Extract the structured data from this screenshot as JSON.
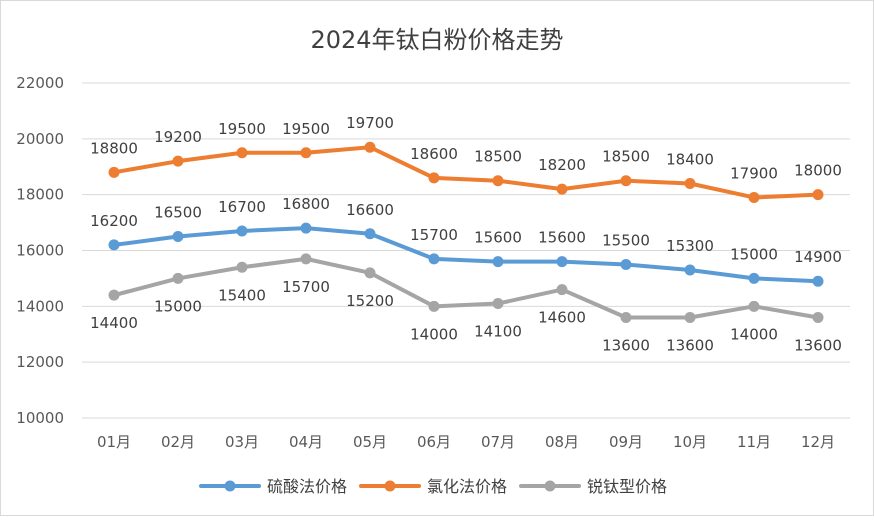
{
  "chart_data": {
    "type": "line",
    "title": "2024年钛白粉价格走势",
    "xlabel": "",
    "ylabel": "",
    "categories": [
      "01月",
      "02月",
      "03月",
      "04月",
      "05月",
      "06月",
      "07月",
      "08月",
      "09月",
      "10月",
      "11月",
      "12月"
    ],
    "ylim": [
      10000,
      22000
    ],
    "yticks": [
      10000,
      12000,
      14000,
      16000,
      18000,
      20000,
      22000
    ],
    "grid": true,
    "legend_position": "bottom",
    "series": [
      {
        "name": "硫酸法价格",
        "color": "#5b9bd5",
        "values": [
          16200,
          16500,
          16700,
          16800,
          16600,
          15700,
          15600,
          15600,
          15500,
          15300,
          15000,
          14900
        ]
      },
      {
        "name": "氯化法价格",
        "color": "#ed7d31",
        "values": [
          18800,
          19200,
          19500,
          19500,
          19700,
          18600,
          18500,
          18200,
          18500,
          18400,
          17900,
          18000
        ]
      },
      {
        "name": "锐钛型价格",
        "color": "#a5a5a5",
        "values": [
          14400,
          15000,
          15400,
          15700,
          15200,
          14000,
          14100,
          14600,
          13600,
          13600,
          14000,
          13600
        ]
      }
    ]
  }
}
